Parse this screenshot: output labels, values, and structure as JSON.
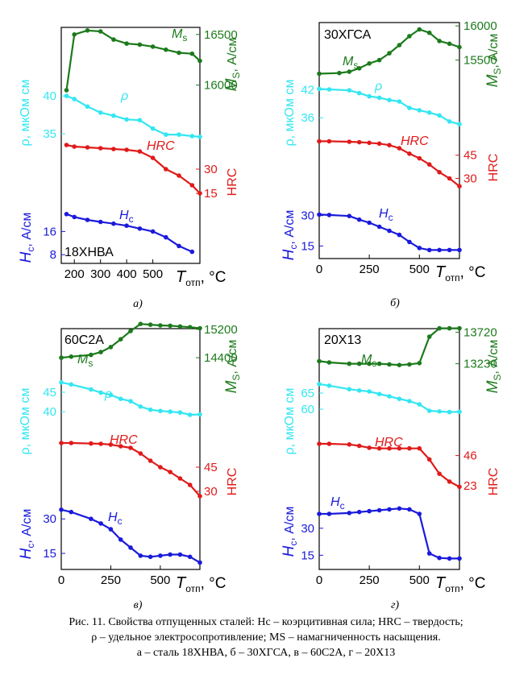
{
  "figure": {
    "caption_lines": [
      "Рис. 11. Свойства отпущенных сталей: Hc – коэрцитивная сила; HRC – твердость;",
      "ρ – удельное электросопротивление; MS – намагниченность насыщения.",
      "а – сталь 18ХНВА, б – 30ХГСА, в – 60С2А, г – 20Х13"
    ]
  },
  "colors": {
    "Ms": "#1c7a1c",
    "rho": "#33e6f2",
    "HRC": "#e01a1a",
    "Hc": "#1a1adb"
  },
  "chart_data": [
    {
      "type": "line",
      "subplot_label": "а)",
      "steel": "18ХНВА",
      "xlabel": "Tотп, °C",
      "xlim": [
        150,
        680
      ],
      "xticks": [
        200,
        300,
        400,
        500
      ],
      "series": [
        {
          "name": "Ms",
          "axis_label": "MS, А/см",
          "ticks": [
            16000,
            16500
          ],
          "range": [
            15950,
            16570
          ],
          "x": [
            170,
            200,
            250,
            300,
            350,
            400,
            450,
            500,
            550,
            600,
            650,
            680
          ],
          "y": [
            15950,
            16500,
            16540,
            16530,
            16450,
            16410,
            16400,
            16380,
            16350,
            16320,
            16310,
            16240
          ]
        },
        {
          "name": "ρ",
          "axis_label": "ρ, мкОм см",
          "ticks": [
            35,
            40
          ],
          "range": [
            33,
            41.5
          ],
          "x": [
            170,
            200,
            250,
            300,
            350,
            400,
            450,
            500,
            550,
            600,
            650,
            680
          ],
          "y": [
            40,
            39.6,
            38.6,
            37.8,
            37.4,
            36.9,
            36.8,
            35.7,
            34.9,
            34.9,
            34.7,
            34.6
          ]
        },
        {
          "name": "HRC",
          "axis_label": "HRC",
          "ticks": [
            15,
            30
          ],
          "range": [
            10,
            50
          ],
          "x": [
            170,
            200,
            250,
            300,
            350,
            400,
            450,
            500,
            550,
            600,
            650,
            680
          ],
          "y": [
            45,
            44,
            43.5,
            43,
            42.5,
            42,
            41,
            37,
            30,
            26,
            20,
            15
          ]
        },
        {
          "name": "Hc",
          "axis_label": "Hc, А/см",
          "ticks": [
            8,
            16
          ],
          "range": [
            5,
            25
          ],
          "x": [
            170,
            200,
            250,
            300,
            350,
            400,
            450,
            500,
            550,
            600,
            650
          ],
          "y": [
            22,
            21,
            20,
            19.3,
            18.7,
            18,
            17,
            16,
            14,
            11,
            9
          ]
        }
      ]
    },
    {
      "type": "line",
      "subplot_label": "б)",
      "steel": "30ХГСА",
      "xlabel": "Tотп, °C",
      "xlim": [
        0,
        700
      ],
      "xticks": [
        0,
        250,
        500
      ],
      "series": [
        {
          "name": "Ms",
          "axis_label": "MS, А/см",
          "ticks": [
            15500,
            16000
          ],
          "range": [
            15200,
            16050
          ],
          "x": [
            0,
            100,
            150,
            200,
            250,
            300,
            350,
            400,
            450,
            500,
            550,
            600,
            650,
            700
          ],
          "y": [
            15300,
            15310,
            15330,
            15380,
            15450,
            15500,
            15600,
            15720,
            15850,
            15950,
            15900,
            15780,
            15740,
            15690
          ]
        },
        {
          "name": "ρ",
          "axis_label": "ρ, мкОм см",
          "ticks": [
            36,
            42
          ],
          "range": [
            31,
            44
          ],
          "x": [
            0,
            50,
            150,
            200,
            250,
            300,
            350,
            400,
            450,
            500,
            550,
            600,
            650,
            700
          ],
          "y": [
            42.2,
            42.1,
            41.9,
            41.3,
            40.6,
            40.3,
            39.8,
            39.5,
            38.1,
            37.6,
            37.1,
            36.5,
            35.2,
            34.6
          ]
        },
        {
          "name": "HRC",
          "axis_label": "HRC",
          "ticks": [
            30,
            45
          ],
          "range": [
            10,
            62
          ],
          "x": [
            0,
            50,
            150,
            200,
            250,
            300,
            350,
            400,
            450,
            500,
            550,
            600,
            650,
            700
          ],
          "y": [
            54,
            54,
            53.7,
            53.4,
            53,
            52.5,
            51.5,
            49.5,
            46,
            43,
            39,
            34,
            30,
            25
          ]
        },
        {
          "name": "Hc",
          "axis_label": "Hc, А/см",
          "ticks": [
            15,
            30
          ],
          "range": [
            10,
            39
          ],
          "x": [
            0,
            50,
            150,
            200,
            250,
            300,
            350,
            400,
            450,
            500,
            550,
            600,
            650,
            700
          ],
          "y": [
            30.5,
            30.3,
            29.8,
            28,
            26.5,
            24.5,
            22.5,
            20.5,
            17,
            14,
            13,
            13,
            13,
            13
          ]
        }
      ]
    },
    {
      "type": "line",
      "subplot_label": "в)",
      "steel": "60С2А",
      "xlabel": "Tотп, °C",
      "xlim": [
        0,
        700
      ],
      "xticks": [
        0,
        250,
        500
      ],
      "series": [
        {
          "name": "Ms",
          "axis_label": "MS, А/см",
          "ticks": [
            14400,
            15200
          ],
          "range": [
            13700,
            15400
          ],
          "x": [
            0,
            50,
            150,
            200,
            250,
            300,
            350,
            400,
            450,
            500,
            550,
            600,
            650,
            700
          ],
          "y": [
            14400,
            14430,
            14480,
            14560,
            14700,
            14920,
            15150,
            15350,
            15330,
            15310,
            15300,
            15280,
            15260,
            15230
          ]
        },
        {
          "name": "ρ",
          "axis_label": "ρ, мкОм см",
          "ticks": [
            40,
            45
          ],
          "range": [
            33,
            48.5
          ],
          "x": [
            0,
            50,
            150,
            200,
            250,
            300,
            350,
            400,
            450,
            500,
            550,
            600,
            650,
            700
          ],
          "y": [
            47.5,
            47,
            45.7,
            44.9,
            44.3,
            43.3,
            42.7,
            41.3,
            40.5,
            40.2,
            40,
            39.8,
            39.2,
            39.3
          ]
        },
        {
          "name": "HRC",
          "axis_label": "HRC",
          "ticks": [
            30,
            45
          ],
          "range": [
            15,
            70
          ],
          "x": [
            0,
            50,
            150,
            200,
            250,
            300,
            350,
            400,
            450,
            500,
            550,
            600,
            650,
            700
          ],
          "y": [
            60,
            60,
            59.7,
            59.5,
            59,
            58,
            57,
            53.5,
            49,
            45,
            42,
            38,
            34,
            27
          ]
        },
        {
          "name": "Hc",
          "axis_label": "Hc, А/см",
          "ticks": [
            15,
            30
          ],
          "range": [
            8,
            42
          ],
          "x": [
            0,
            50,
            150,
            200,
            250,
            300,
            350,
            400,
            450,
            500,
            550,
            600,
            650,
            700
          ],
          "y": [
            34,
            33,
            30,
            28,
            25.5,
            21,
            17.5,
            14,
            13.5,
            14,
            14.5,
            14.5,
            13.5,
            11
          ]
        }
      ]
    },
    {
      "type": "line",
      "subplot_label": "г)",
      "steel": "20Х13",
      "xlabel": "Tотп, °C",
      "xlim": [
        0,
        700
      ],
      "xticks": [
        0,
        250,
        500
      ],
      "series": [
        {
          "name": "Ms",
          "axis_label": "MS, А/см",
          "ticks": [
            13230,
            13720
          ],
          "range": [
            12900,
            13850
          ],
          "x": [
            0,
            50,
            150,
            200,
            250,
            300,
            350,
            400,
            450,
            500,
            550,
            600,
            650,
            700
          ],
          "y": [
            13270,
            13250,
            13230,
            13230,
            13230,
            13230,
            13220,
            13210,
            13220,
            13240,
            13650,
            13780,
            13780,
            13780
          ]
        },
        {
          "name": "ρ",
          "axis_label": "ρ, мкОм см",
          "ticks": [
            60,
            65
          ],
          "range": [
            50,
            69.5
          ],
          "x": [
            0,
            50,
            150,
            200,
            250,
            300,
            350,
            400,
            450,
            500,
            550,
            600,
            650,
            700
          ],
          "y": [
            67.8,
            67.3,
            66.2,
            65.8,
            65.5,
            64.7,
            64,
            63.2,
            62.5,
            61.5,
            59.5,
            59.3,
            59.1,
            59.2
          ]
        },
        {
          "name": "HRC",
          "axis_label": "HRC",
          "ticks": [
            23,
            46
          ],
          "range": [
            0,
            68
          ],
          "x": [
            0,
            50,
            150,
            200,
            250,
            300,
            350,
            400,
            450,
            500,
            550,
            600,
            650,
            700
          ],
          "y": [
            55,
            55,
            54.5,
            53.5,
            52,
            51.5,
            51.5,
            51.5,
            51.5,
            51.5,
            43,
            32,
            26,
            22
          ]
        },
        {
          "name": "Hc",
          "axis_label": "Hc, А/см",
          "ticks": [
            15,
            30
          ],
          "range": [
            8,
            55
          ],
          "x": [
            0,
            50,
            150,
            200,
            250,
            300,
            350,
            400,
            450,
            500,
            550,
            600,
            650,
            700
          ],
          "y": [
            38,
            38,
            38.5,
            39,
            39.5,
            40,
            40.5,
            41,
            40.5,
            38,
            16,
            13.5,
            13.2,
            13.2
          ]
        }
      ]
    }
  ]
}
